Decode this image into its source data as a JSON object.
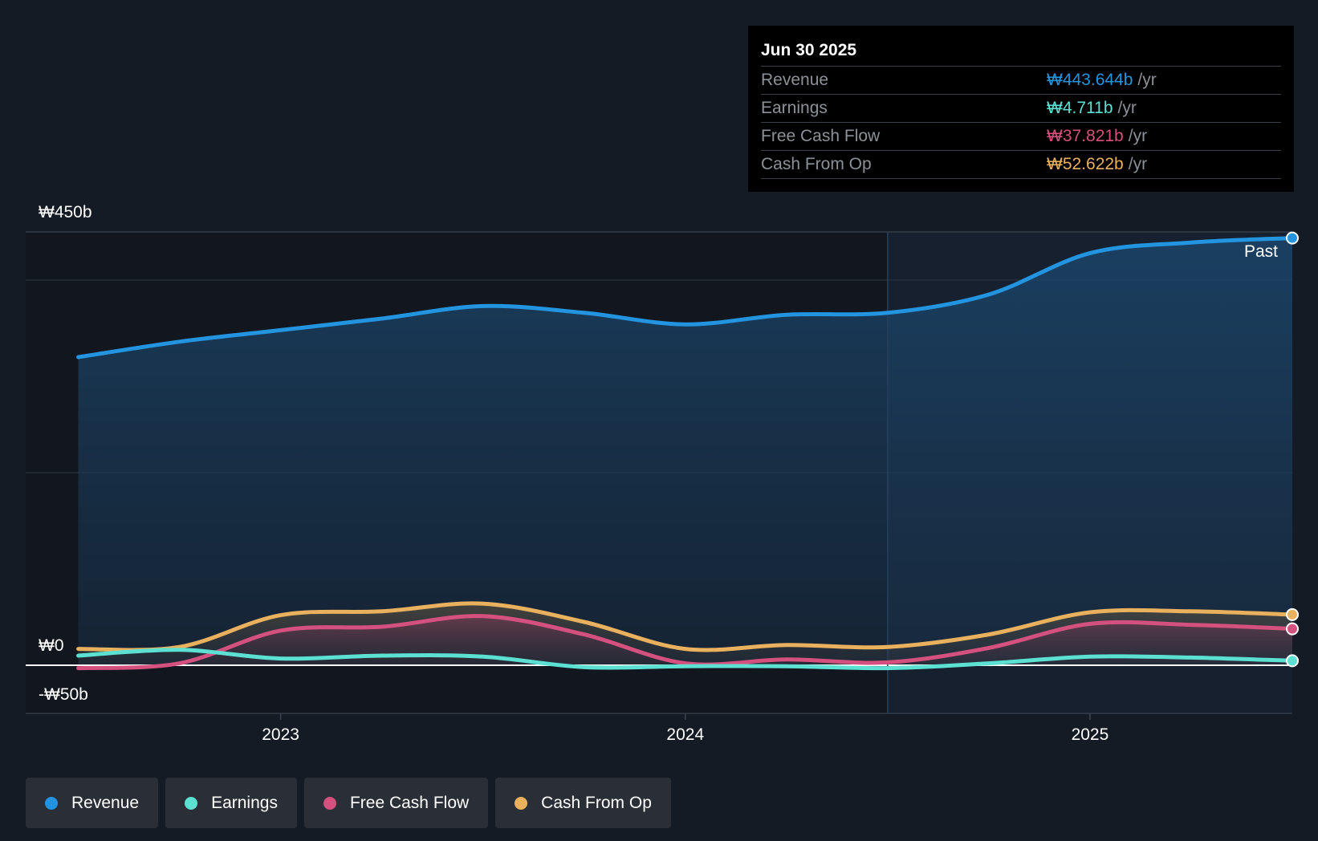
{
  "colors": {
    "background": "#151b24",
    "revenue": "#2394df",
    "earnings": "#5ce0d2",
    "fcf": "#d4507e",
    "cfo": "#e9b15e"
  },
  "tooltip": {
    "date": "Jun 30 2025",
    "rows": [
      {
        "label": "Revenue",
        "value": "₩443.644b",
        "unit": "/yr",
        "color": "#2394df"
      },
      {
        "label": "Earnings",
        "value": "₩4.711b",
        "unit": "/yr",
        "color": "#5ce0d2"
      },
      {
        "label": "Free Cash Flow",
        "value": "₩37.821b",
        "unit": "/yr",
        "color": "#d4507e"
      },
      {
        "label": "Cash From Op",
        "value": "₩52.622b",
        "unit": "/yr",
        "color": "#e9b15e"
      }
    ]
  },
  "chart_data": {
    "type": "area",
    "title": "",
    "xlabel": "",
    "ylabel": "",
    "ylim": [
      -50,
      450
    ],
    "y_tick_labels": [
      "₩450b",
      "₩0",
      "-₩50b"
    ],
    "x_ticks": [
      {
        "label": "2023",
        "value": 2023.0
      },
      {
        "label": "2024",
        "value": 2024.0
      },
      {
        "label": "2025",
        "value": 2025.0
      }
    ],
    "xlim": [
      2022.37,
      2025.5
    ],
    "past_divider_x": 2024.5,
    "past_label": "Past",
    "series": [
      {
        "name": "Revenue",
        "key": "revenue",
        "x": [
          2022.5,
          2022.75,
          2023.0,
          2023.25,
          2023.5,
          2023.75,
          2024.0,
          2024.25,
          2024.5,
          2024.75,
          2025.0,
          2025.25,
          2025.5
        ],
        "values": [
          320,
          336,
          348,
          360,
          373,
          366,
          354,
          364,
          366,
          385,
          428,
          439,
          443.644
        ]
      },
      {
        "name": "Earnings",
        "key": "earnings",
        "x": [
          2022.5,
          2022.75,
          2023.0,
          2023.25,
          2023.5,
          2023.75,
          2024.0,
          2024.25,
          2024.5,
          2024.75,
          2025.0,
          2025.25,
          2025.5
        ],
        "values": [
          10,
          16,
          7,
          10,
          9,
          -2,
          -1,
          -1,
          -3,
          2,
          9,
          8,
          4.711
        ]
      },
      {
        "name": "Free Cash Flow",
        "key": "fcf",
        "x": [
          2022.5,
          2022.75,
          2023.0,
          2023.25,
          2023.5,
          2023.75,
          2024.0,
          2024.25,
          2024.5,
          2024.75,
          2025.0,
          2025.25,
          2025.5
        ],
        "values": [
          -3,
          2,
          36,
          40,
          51,
          32,
          2,
          6,
          3,
          18,
          43,
          42,
          37.821
        ]
      },
      {
        "name": "Cash From Op",
        "key": "cfo",
        "x": [
          2022.5,
          2022.75,
          2023.0,
          2023.25,
          2023.5,
          2023.75,
          2024.0,
          2024.25,
          2024.5,
          2024.75,
          2025.0,
          2025.25,
          2025.5
        ],
        "values": [
          17,
          19,
          52,
          56,
          64,
          45,
          17,
          21,
          19,
          32,
          55,
          56,
          52.622
        ]
      }
    ]
  },
  "legend": {
    "items": [
      {
        "label": "Revenue",
        "color": "#2394df"
      },
      {
        "label": "Earnings",
        "color": "#5ce0d2"
      },
      {
        "label": "Free Cash Flow",
        "color": "#d4507e"
      },
      {
        "label": "Cash From Op",
        "color": "#e9b15e"
      }
    ]
  }
}
